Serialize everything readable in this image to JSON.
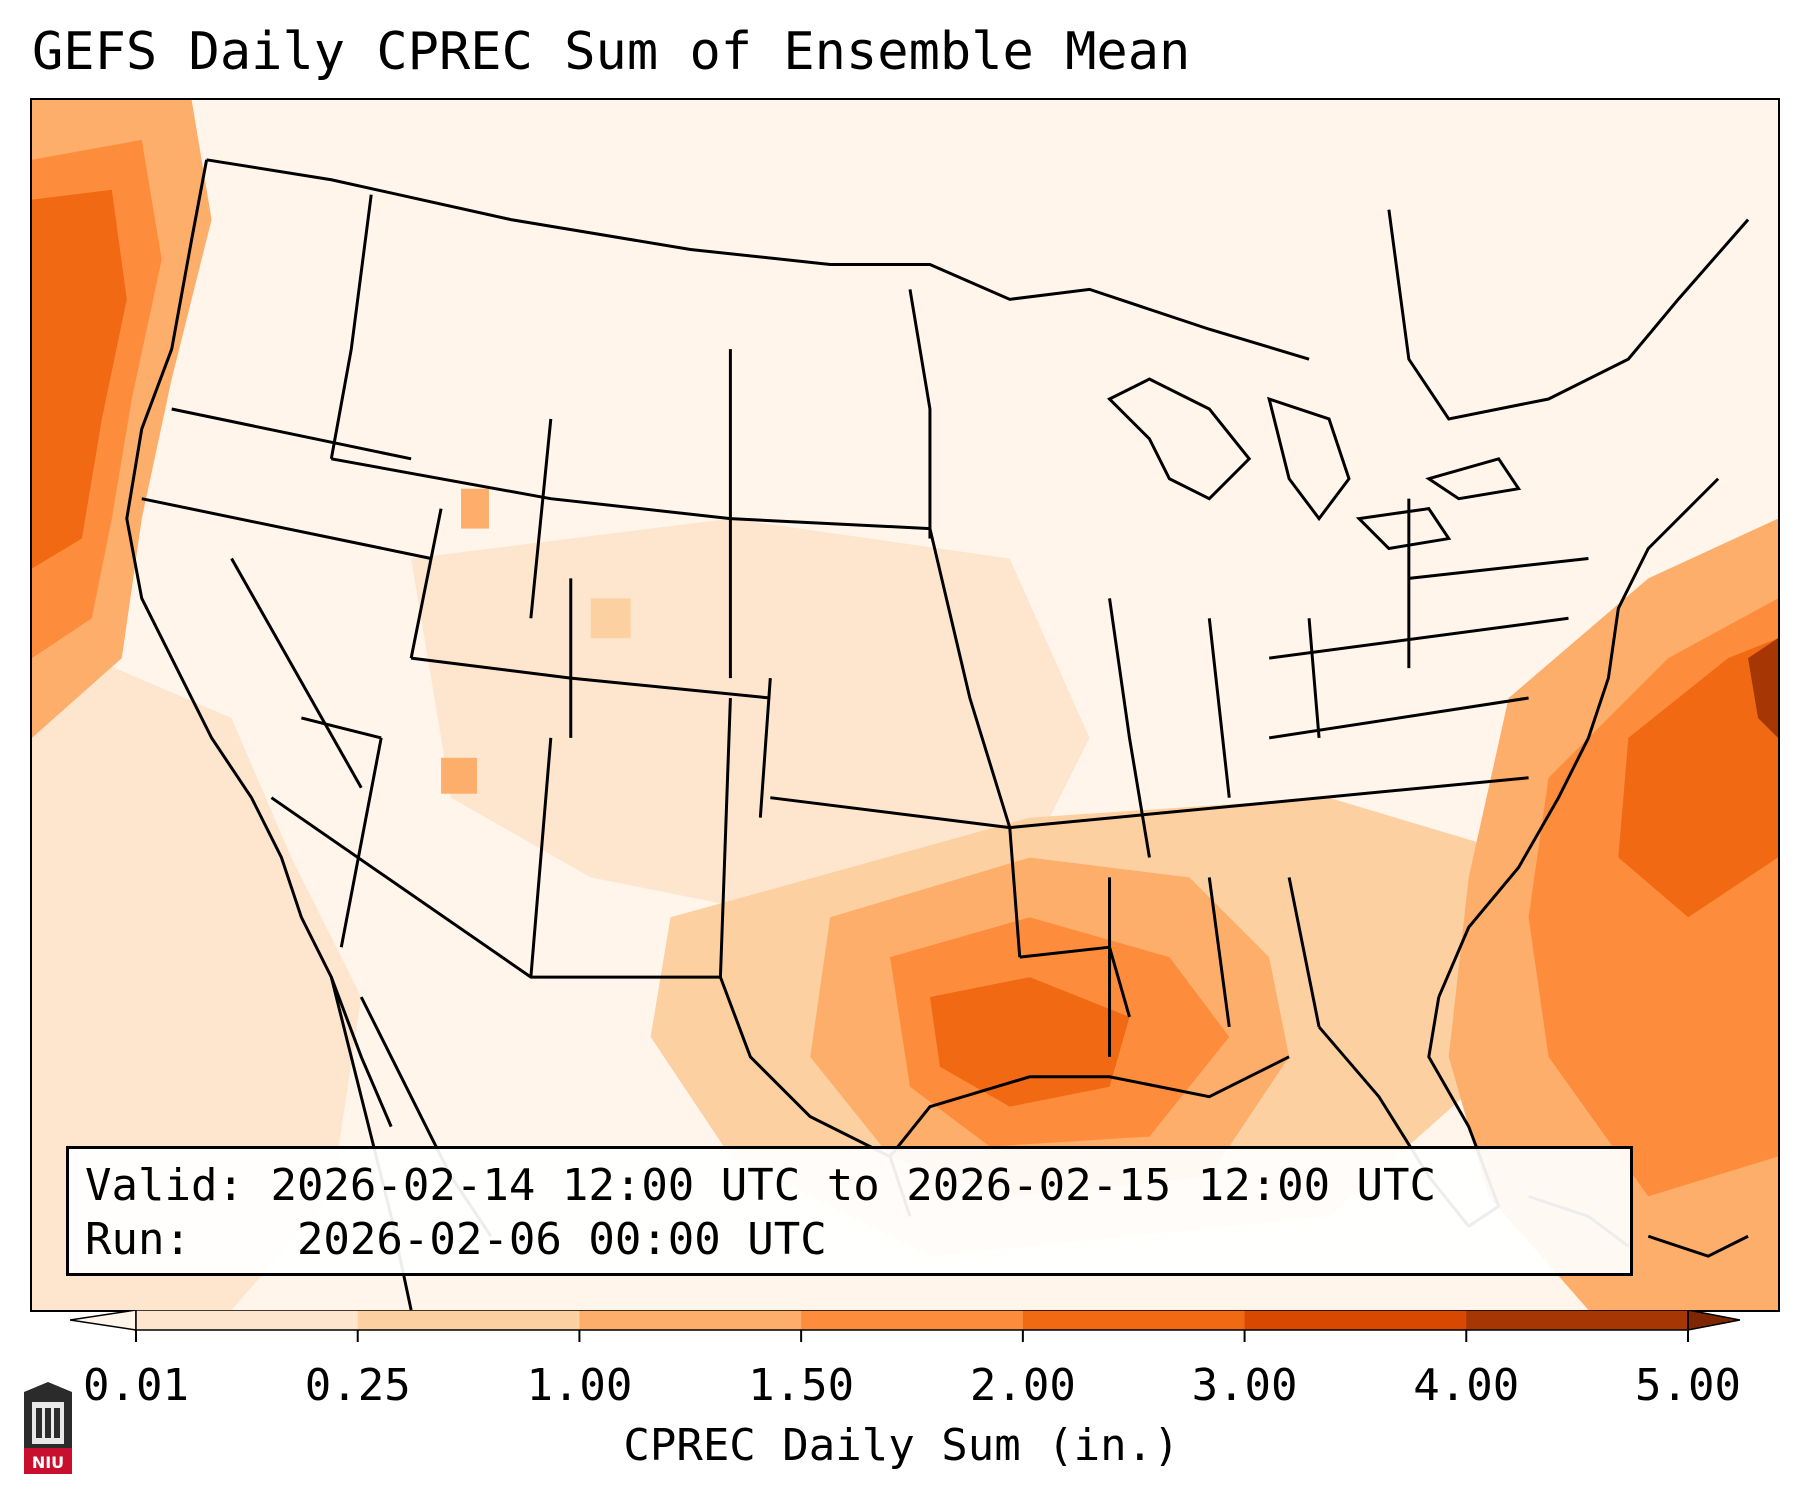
{
  "title": "GEFS Daily CPREC Sum of Ensemble Mean",
  "validity": {
    "valid_label": "Valid:",
    "valid_value": "2026-02-14 12:00 UTC to 2026-02-15 12:00 UTC",
    "run_label": "Run:",
    "run_value": "2026-02-06 00:00 UTC"
  },
  "colorbar": {
    "label": "CPREC Daily Sum (in.)",
    "ticks": [
      "0.01",
      "0.25",
      "1.00",
      "1.50",
      "2.00",
      "3.00",
      "4.00",
      "5.00"
    ],
    "colors": [
      "#fff5eb",
      "#fee6ce",
      "#fdd0a2",
      "#fdae6b",
      "#fd8d3c",
      "#f16913",
      "#d94801",
      "#a63603",
      "#7f2704"
    ]
  },
  "logo": {
    "text": "NIU"
  }
}
